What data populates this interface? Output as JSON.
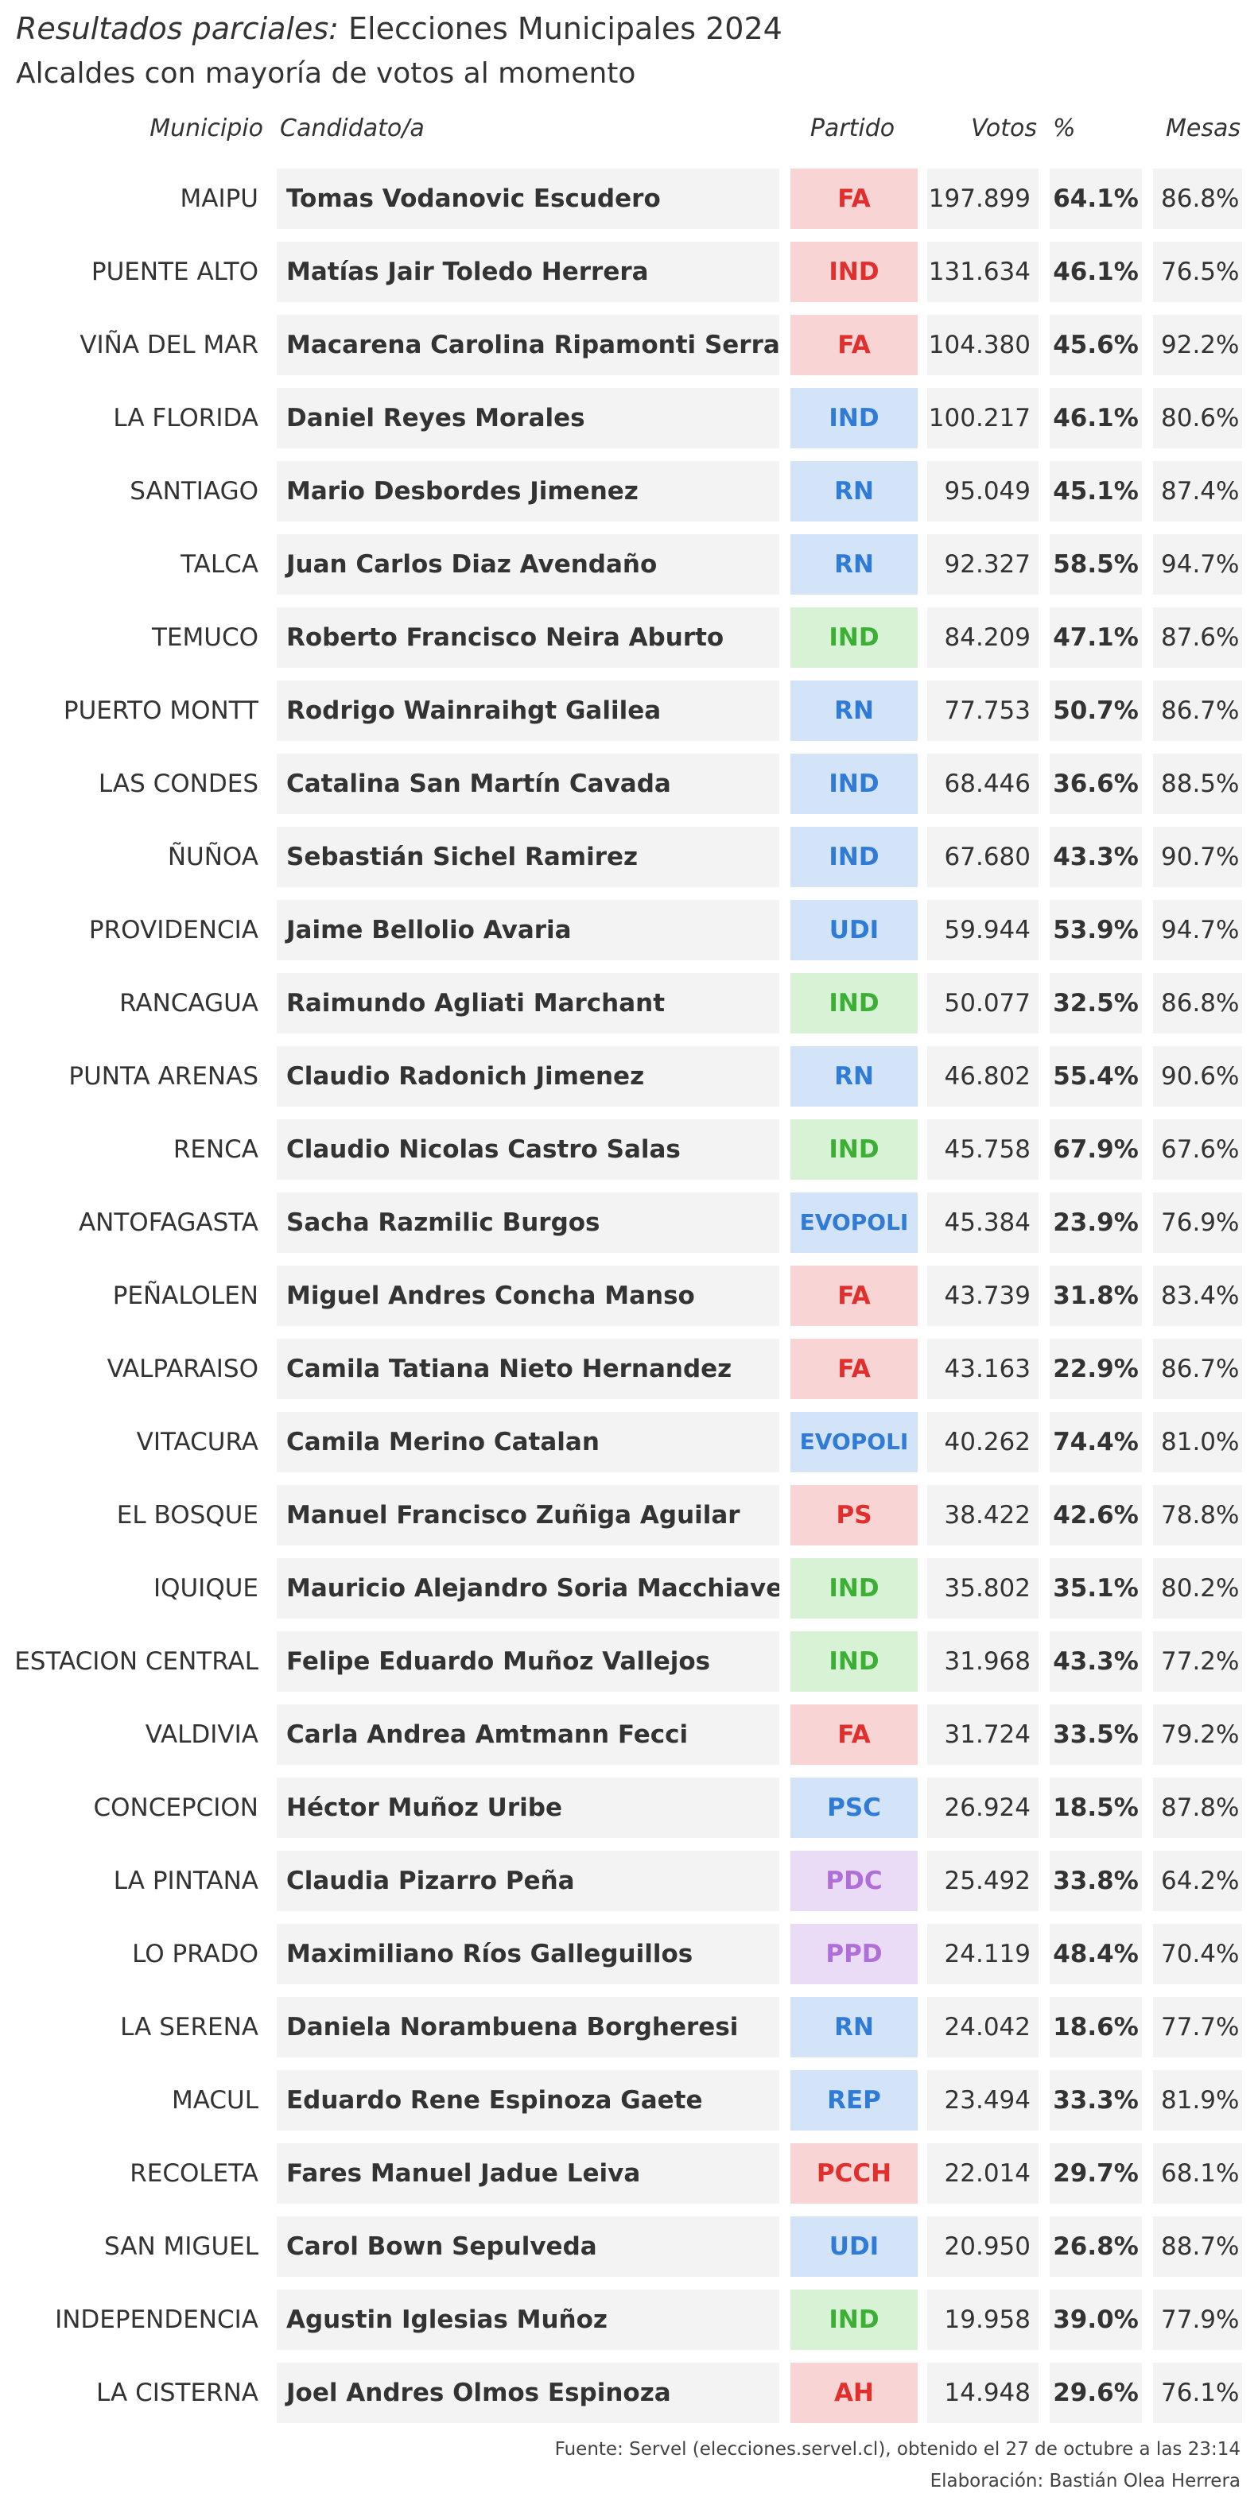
{
  "header": {
    "title_italic": "Resultados parciales:",
    "title_rest": " Elecciones Municipales 2024",
    "subtitle": "Alcaldes con mayoría de votos al momento"
  },
  "columns": {
    "municipio": "Municipio",
    "candidato": "Candidato/a",
    "partido": "Partido",
    "votos": "Votos",
    "pct": "%",
    "mesas": "Mesas"
  },
  "party_colors": {
    "FA": {
      "bg": "#f8d4d4",
      "fg": "#e0302e"
    },
    "PS": {
      "bg": "#f8d4d4",
      "fg": "#e0302e"
    },
    "PCCH": {
      "bg": "#f8d4d4",
      "fg": "#e0302e"
    },
    "AH": {
      "bg": "#f8d4d4",
      "fg": "#e0302e"
    },
    "RN": {
      "bg": "#d3e3f8",
      "fg": "#2f7bd6"
    },
    "UDI": {
      "bg": "#d3e3f8",
      "fg": "#2f7bd6"
    },
    "EVOPOLI": {
      "bg": "#d3e3f8",
      "fg": "#2f7bd6"
    },
    "PSC": {
      "bg": "#d3e3f8",
      "fg": "#2f7bd6"
    },
    "REP": {
      "bg": "#d3e3f8",
      "fg": "#2f7bd6"
    },
    "IND_red": {
      "bg": "#f8d4d4",
      "fg": "#e0302e"
    },
    "IND_blue": {
      "bg": "#d3e3f8",
      "fg": "#2f7bd6"
    },
    "IND_green": {
      "bg": "#d7f2d4",
      "fg": "#3cb034"
    },
    "PDC": {
      "bg": "#eadcf6",
      "fg": "#b06ed8"
    },
    "PPD": {
      "bg": "#eadcf6",
      "fg": "#b06ed8"
    }
  },
  "rows": [
    {
      "municipio": "MAIPU",
      "candidato": "Tomas Vodanovic Escudero",
      "partido": "FA",
      "color": "FA",
      "votos": "197.899",
      "pct": "64.1%",
      "mesas": "86.8%"
    },
    {
      "municipio": "PUENTE ALTO",
      "candidato": "Matías Jair Toledo Herrera",
      "partido": "IND",
      "color": "IND_red",
      "votos": "131.634",
      "pct": "46.1%",
      "mesas": "76.5%"
    },
    {
      "municipio": "VIÑA DEL MAR",
      "candidato": "Macarena Carolina Ripamonti Serrano",
      "partido": "FA",
      "color": "FA",
      "votos": "104.380",
      "pct": "45.6%",
      "mesas": "92.2%"
    },
    {
      "municipio": "LA FLORIDA",
      "candidato": "Daniel Reyes Morales",
      "partido": "IND",
      "color": "IND_blue",
      "votos": "100.217",
      "pct": "46.1%",
      "mesas": "80.6%"
    },
    {
      "municipio": "SANTIAGO",
      "candidato": "Mario Desbordes Jimenez",
      "partido": "RN",
      "color": "RN",
      "votos": "95.049",
      "pct": "45.1%",
      "mesas": "87.4%"
    },
    {
      "municipio": "TALCA",
      "candidato": "Juan Carlos Diaz Avendaño",
      "partido": "RN",
      "color": "RN",
      "votos": "92.327",
      "pct": "58.5%",
      "mesas": "94.7%"
    },
    {
      "municipio": "TEMUCO",
      "candidato": "Roberto Francisco Neira Aburto",
      "partido": "IND",
      "color": "IND_green",
      "votos": "84.209",
      "pct": "47.1%",
      "mesas": "87.6%"
    },
    {
      "municipio": "PUERTO MONTT",
      "candidato": "Rodrigo Wainraihgt Galilea",
      "partido": "RN",
      "color": "RN",
      "votos": "77.753",
      "pct": "50.7%",
      "mesas": "86.7%"
    },
    {
      "municipio": "LAS CONDES",
      "candidato": "Catalina San Martín Cavada",
      "partido": "IND",
      "color": "IND_blue",
      "votos": "68.446",
      "pct": "36.6%",
      "mesas": "88.5%"
    },
    {
      "municipio": "ÑUÑOA",
      "candidato": "Sebastián Sichel Ramirez",
      "partido": "IND",
      "color": "IND_blue",
      "votos": "67.680",
      "pct": "43.3%",
      "mesas": "90.7%"
    },
    {
      "municipio": "PROVIDENCIA",
      "candidato": "Jaime Bellolio Avaria",
      "partido": "UDI",
      "color": "UDI",
      "votos": "59.944",
      "pct": "53.9%",
      "mesas": "94.7%"
    },
    {
      "municipio": "RANCAGUA",
      "candidato": "Raimundo Agliati Marchant",
      "partido": "IND",
      "color": "IND_green",
      "votos": "50.077",
      "pct": "32.5%",
      "mesas": "86.8%"
    },
    {
      "municipio": "PUNTA ARENAS",
      "candidato": "Claudio Radonich Jimenez",
      "partido": "RN",
      "color": "RN",
      "votos": "46.802",
      "pct": "55.4%",
      "mesas": "90.6%"
    },
    {
      "municipio": "RENCA",
      "candidato": "Claudio Nicolas Castro Salas",
      "partido": "IND",
      "color": "IND_green",
      "votos": "45.758",
      "pct": "67.9%",
      "mesas": "67.6%"
    },
    {
      "municipio": "ANTOFAGASTA",
      "candidato": "Sacha Razmilic Burgos",
      "partido": "EVOPOLI",
      "color": "EVOPOLI",
      "votos": "45.384",
      "pct": "23.9%",
      "mesas": "76.9%"
    },
    {
      "municipio": "PEÑALOLEN",
      "candidato": "Miguel Andres Concha Manso",
      "partido": "FA",
      "color": "FA",
      "votos": "43.739",
      "pct": "31.8%",
      "mesas": "83.4%"
    },
    {
      "municipio": "VALPARAISO",
      "candidato": "Camila Tatiana Nieto Hernandez",
      "partido": "FA",
      "color": "FA",
      "votos": "43.163",
      "pct": "22.9%",
      "mesas": "86.7%"
    },
    {
      "municipio": "VITACURA",
      "candidato": "Camila Merino Catalan",
      "partido": "EVOPOLI",
      "color": "EVOPOLI",
      "votos": "40.262",
      "pct": "74.4%",
      "mesas": "81.0%"
    },
    {
      "municipio": "EL BOSQUE",
      "candidato": "Manuel Francisco Zuñiga Aguilar",
      "partido": "PS",
      "color": "PS",
      "votos": "38.422",
      "pct": "42.6%",
      "mesas": "78.8%"
    },
    {
      "municipio": "IQUIQUE",
      "candidato": "Mauricio Alejandro Soria Macchiavello",
      "partido": "IND",
      "color": "IND_green",
      "votos": "35.802",
      "pct": "35.1%",
      "mesas": "80.2%"
    },
    {
      "municipio": "ESTACION CENTRAL",
      "candidato": "Felipe Eduardo Muñoz Vallejos",
      "partido": "IND",
      "color": "IND_green",
      "votos": "31.968",
      "pct": "43.3%",
      "mesas": "77.2%"
    },
    {
      "municipio": "VALDIVIA",
      "candidato": "Carla Andrea Amtmann Fecci",
      "partido": "FA",
      "color": "FA",
      "votos": "31.724",
      "pct": "33.5%",
      "mesas": "79.2%"
    },
    {
      "municipio": "CONCEPCION",
      "candidato": "Héctor Muñoz Uribe",
      "partido": "PSC",
      "color": "PSC",
      "votos": "26.924",
      "pct": "18.5%",
      "mesas": "87.8%"
    },
    {
      "municipio": "LA PINTANA",
      "candidato": "Claudia Pizarro Peña",
      "partido": "PDC",
      "color": "PDC",
      "votos": "25.492",
      "pct": "33.8%",
      "mesas": "64.2%"
    },
    {
      "municipio": "LO PRADO",
      "candidato": "Maximiliano Ríos Galleguillos",
      "partido": "PPD",
      "color": "PPD",
      "votos": "24.119",
      "pct": "48.4%",
      "mesas": "70.4%"
    },
    {
      "municipio": "LA SERENA",
      "candidato": "Daniela Norambuena Borgheresi",
      "partido": "RN",
      "color": "RN",
      "votos": "24.042",
      "pct": "18.6%",
      "mesas": "77.7%"
    },
    {
      "municipio": "MACUL",
      "candidato": "Eduardo Rene Espinoza Gaete",
      "partido": "REP",
      "color": "REP",
      "votos": "23.494",
      "pct": "33.3%",
      "mesas": "81.9%"
    },
    {
      "municipio": "RECOLETA",
      "candidato": "Fares Manuel Jadue Leiva",
      "partido": "PCCH",
      "color": "PCCH",
      "votos": "22.014",
      "pct": "29.7%",
      "mesas": "68.1%"
    },
    {
      "municipio": "SAN MIGUEL",
      "candidato": "Carol Bown Sepulveda",
      "partido": "UDI",
      "color": "UDI",
      "votos": "20.950",
      "pct": "26.8%",
      "mesas": "88.7%"
    },
    {
      "municipio": "INDEPENDENCIA",
      "candidato": "Agustin Iglesias Muñoz",
      "partido": "IND",
      "color": "IND_green",
      "votos": "19.958",
      "pct": "39.0%",
      "mesas": "77.9%"
    },
    {
      "municipio": "LA CISTERNA",
      "candidato": "Joel Andres Olmos Espinoza",
      "partido": "AH",
      "color": "AH",
      "votos": "14.948",
      "pct": "29.6%",
      "mesas": "76.1%"
    }
  ],
  "footer": {
    "source": "Fuente: Servel (elecciones.servel.cl), obtenido el 27 de octubre a las 23:14",
    "credit": "Elaboración: Bastián Olea Herrera"
  }
}
